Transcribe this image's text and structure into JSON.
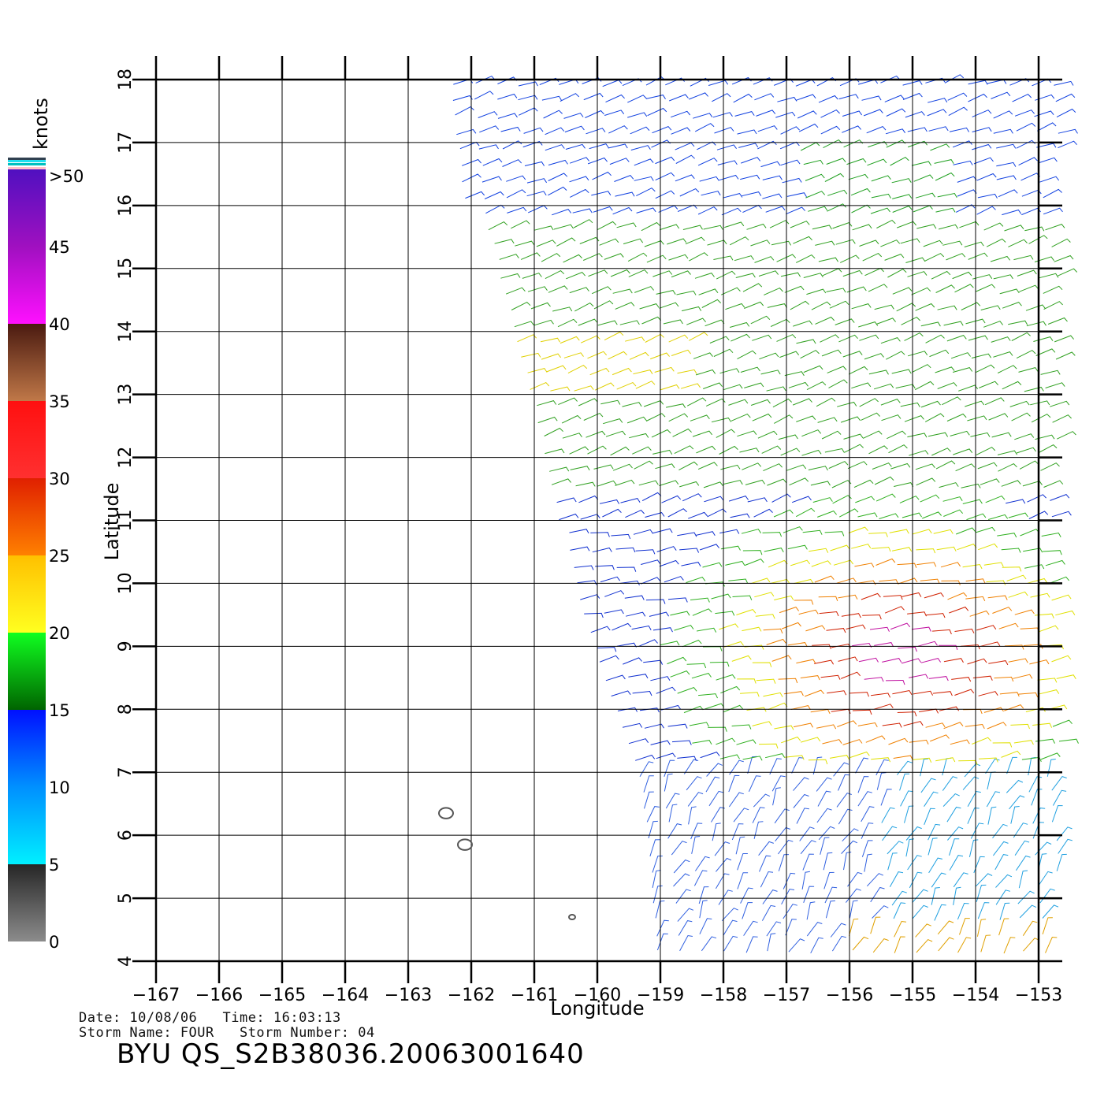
{
  "map": {
    "lon_min": -167,
    "lon_max": -153,
    "lat_min": 4,
    "lat_max": 18,
    "lon_ticks": [
      -167,
      -166,
      -165,
      -164,
      -163,
      -162,
      -161,
      -160,
      -159,
      -158,
      -157,
      -156,
      -155,
      -154,
      -153
    ],
    "lat_ticks": [
      4,
      5,
      6,
      7,
      8,
      9,
      10,
      11,
      12,
      13,
      14,
      15,
      16,
      17,
      18
    ],
    "lon_tick_labels": [
      "−167",
      "−166",
      "−165",
      "−164",
      "−163",
      "−162",
      "−161",
      "−160",
      "−159",
      "−158",
      "−157",
      "−156",
      "−155",
      "−154",
      "−153"
    ],
    "lat_tick_labels": [
      "4",
      "5",
      "6",
      "7",
      "8",
      "9",
      "10",
      "11",
      "12",
      "13",
      "14",
      "15",
      "16",
      "17",
      "18"
    ],
    "xlabel": "Longitude",
    "ylabel": "Latitude",
    "islands": [
      {
        "lon": -162.4,
        "lat": 6.35
      },
      {
        "lon": -162.1,
        "lat": 5.85
      },
      {
        "lon": -160.4,
        "lat": 4.7
      }
    ]
  },
  "colorbar": {
    "unit": "knots",
    "labels": [
      "0",
      "5",
      "10",
      "15",
      "20",
      "25",
      "30",
      "35",
      "40",
      "45",
      ">50"
    ],
    "stops": [
      {
        "v": 0,
        "color": "#8c8c8c"
      },
      {
        "v": 5,
        "color": "#262626"
      },
      {
        "v": 5,
        "color": "#00f0ff"
      },
      {
        "v": 10,
        "color": "#0090ff"
      },
      {
        "v": 15,
        "color": "#0010ff"
      },
      {
        "v": 15,
        "color": "#006400"
      },
      {
        "v": 20,
        "color": "#10ff20"
      },
      {
        "v": 20,
        "color": "#ffff20"
      },
      {
        "v": 25,
        "color": "#ffc000"
      },
      {
        "v": 25,
        "color": "#ff8000"
      },
      {
        "v": 30,
        "color": "#e02000"
      },
      {
        "v": 30,
        "color": "#ff3030"
      },
      {
        "v": 35,
        "color": "#ff1010"
      },
      {
        "v": 35,
        "color": "#c07848"
      },
      {
        "v": 40,
        "color": "#4a1a10"
      },
      {
        "v": 40,
        "color": "#ff10ff"
      },
      {
        "v": 45,
        "color": "#a010c0"
      },
      {
        "v": 50,
        "color": "#5010c0"
      }
    ]
  },
  "info": {
    "date_line": "Date: 10/08/06   Time: 16:03:13",
    "storm_line": "Storm Name: FOUR   Storm Number: 04",
    "title": "BYU QS_S2B38036.20063001640"
  }
}
